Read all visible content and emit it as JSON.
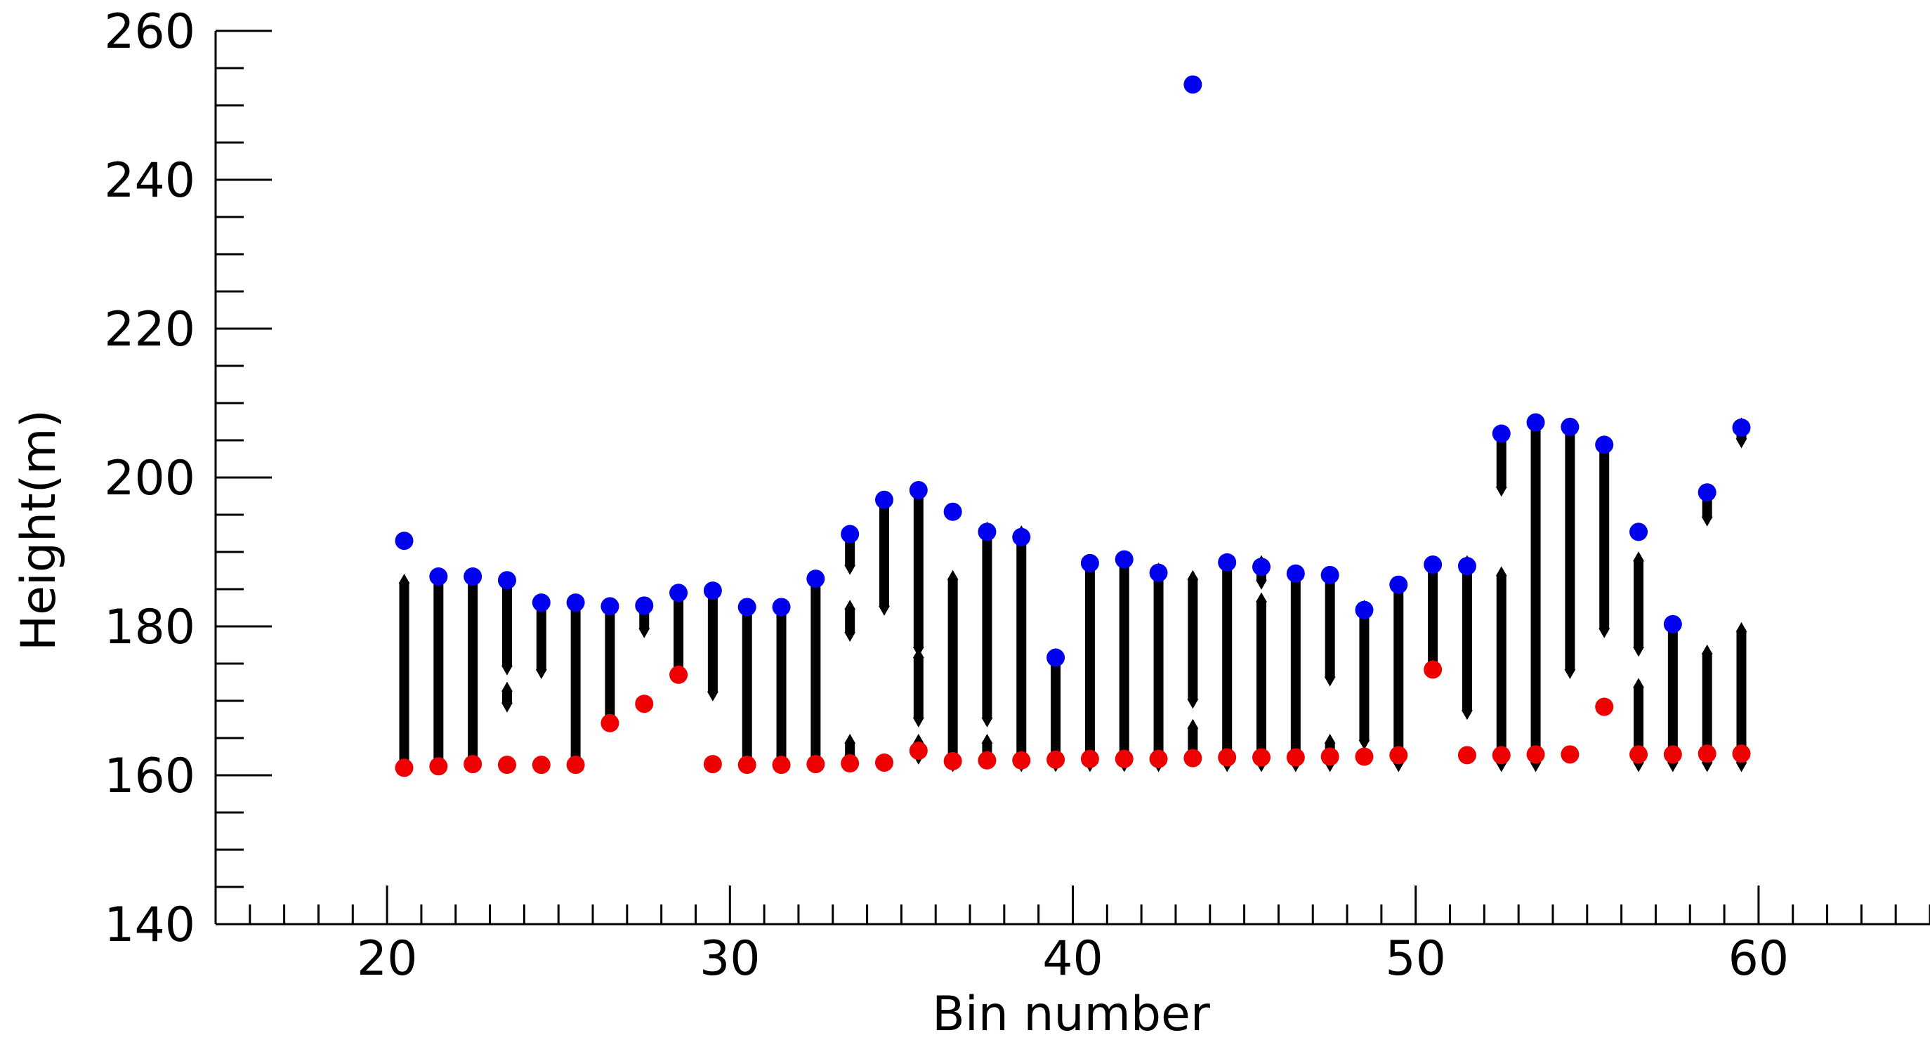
{
  "chart_data": {
    "type": "scatter",
    "title": "",
    "xlabel": "Bin number",
    "ylabel": "Height(m)",
    "xlim": [
      15,
      65
    ],
    "ylim": [
      140,
      260
    ],
    "xticks": [
      "20",
      "30",
      "40",
      "50",
      "60"
    ],
    "yticks": [
      "140",
      "160",
      "180",
      "200",
      "220",
      "240",
      "260"
    ],
    "grid": false,
    "legend": "none",
    "colors": {
      "max": "#0000ee",
      "min": "#ee0000",
      "samples": "#000000"
    },
    "series": [
      {
        "key": "max",
        "marker": "filled-circle",
        "x": [
          20.5,
          21.5,
          22.5,
          23.5,
          24.5,
          25.5,
          26.5,
          27.5,
          28.5,
          29.5,
          30.5,
          31.5,
          32.5,
          33.5,
          34.5,
          35.5,
          36.5,
          37.5,
          38.5,
          39.5,
          40.5,
          41.5,
          42.5,
          43.5,
          44.5,
          45.5,
          46.5,
          47.5,
          48.5,
          49.5,
          50.5,
          51.5,
          52.5,
          53.5,
          54.5,
          55.5,
          56.5,
          57.5,
          58.5,
          59.5
        ],
        "y": [
          191.5,
          186.7,
          186.7,
          186.2,
          183.2,
          183.2,
          182.7,
          182.8,
          184.5,
          184.8,
          182.6,
          182.6,
          186.4,
          192.4,
          197.0,
          198.3,
          195.4,
          192.7,
          192.0,
          175.8,
          188.5,
          189.0,
          187.2,
          252.8,
          188.6,
          188.0,
          187.1,
          186.9,
          182.2,
          185.6,
          188.3,
          188.1,
          205.9,
          207.4,
          206.8,
          204.4,
          192.7,
          180.3,
          198.0,
          206.7
        ]
      },
      {
        "key": "min",
        "marker": "filled-circle",
        "x": [
          20.5,
          21.5,
          22.5,
          23.5,
          24.5,
          25.5,
          26.5,
          27.5,
          28.5,
          29.5,
          30.5,
          31.5,
          32.5,
          33.5,
          34.5,
          35.5,
          36.5,
          37.5,
          38.5,
          39.5,
          40.5,
          41.5,
          42.5,
          43.5,
          44.5,
          45.5,
          46.5,
          47.5,
          48.5,
          49.5,
          50.5,
          51.5,
          52.5,
          53.5,
          54.5,
          55.5,
          56.5,
          57.5,
          58.5,
          59.5
        ],
        "y": [
          161.0,
          161.2,
          161.5,
          161.4,
          161.4,
          161.4,
          167.0,
          169.6,
          173.5,
          161.5,
          161.4,
          161.4,
          161.5,
          161.6,
          161.7,
          163.3,
          161.9,
          162.0,
          162.0,
          162.1,
          162.2,
          162.2,
          162.2,
          162.3,
          162.4,
          162.4,
          162.4,
          162.5,
          162.5,
          162.7,
          174.2,
          162.7,
          162.7,
          162.8,
          162.8,
          169.2,
          162.8,
          162.8,
          162.9,
          162.9
        ]
      },
      {
        "key": "samples",
        "marker": "open-diamond",
        "columns": [
          {
            "x": 20.5,
            "ranges": [
              [
                162.5,
                185.0
              ]
            ]
          },
          {
            "x": 21.5,
            "ranges": [
              [
                162.5,
                185.5
              ]
            ]
          },
          {
            "x": 22.5,
            "ranges": [
              [
                162.5,
                185.5
              ]
            ]
          },
          {
            "x": 23.5,
            "ranges": [
              [
                170.5,
                170.5
              ],
              [
                175.5,
                185.0
              ]
            ]
          },
          {
            "x": 24.5,
            "ranges": [
              [
                175.0,
                182.0
              ]
            ]
          },
          {
            "x": 25.5,
            "ranges": [
              [
                162.5,
                182.0
              ]
            ]
          },
          {
            "x": 26.5,
            "ranges": [
              [
                168.5,
                181.5
              ]
            ]
          },
          {
            "x": 27.5,
            "ranges": [
              [
                180.5,
                181.5
              ]
            ]
          },
          {
            "x": 28.5,
            "ranges": [
              [
                175.0,
                183.0
              ]
            ]
          },
          {
            "x": 29.5,
            "ranges": [
              [
                172.0,
                183.5
              ]
            ]
          },
          {
            "x": 30.5,
            "ranges": [
              [
                162.5,
                181.5
              ]
            ]
          },
          {
            "x": 31.5,
            "ranges": [
              [
                162.5,
                181.5
              ]
            ]
          },
          {
            "x": 32.5,
            "ranges": [
              [
                162.5,
                185.0
              ]
            ]
          },
          {
            "x": 33.5,
            "ranges": [
              [
                163.5,
                163.5
              ],
              [
                180.0,
                181.5
              ],
              [
                189.0,
                191.5
              ]
            ]
          },
          {
            "x": 34.5,
            "ranges": [
              [
                183.5,
                195.5
              ]
            ]
          },
          {
            "x": 35.5,
            "ranges": [
              [
                163.5,
                163.5
              ],
              [
                168.5,
                175.0
              ],
              [
                178.0,
                197.5
              ]
            ]
          },
          {
            "x": 36.5,
            "ranges": [
              [
                162.5,
                185.5
              ]
            ]
          },
          {
            "x": 37.5,
            "ranges": [
              [
                163.5,
                163.5
              ],
              [
                168.5,
                192.0
              ]
            ]
          },
          {
            "x": 38.5,
            "ranges": [
              [
                162.5,
                191.5
              ]
            ]
          },
          {
            "x": 39.5,
            "ranges": [
              [
                162.5,
                175.0
              ]
            ]
          },
          {
            "x": 40.5,
            "ranges": [
              [
                162.5,
                187.5
              ]
            ]
          },
          {
            "x": 41.5,
            "ranges": [
              [
                162.5,
                188.0
              ]
            ]
          },
          {
            "x": 42.5,
            "ranges": [
              [
                162.5,
                186.5
              ]
            ]
          },
          {
            "x": 43.5,
            "ranges": [
              [
                164.0,
                165.5
              ],
              [
                171.0,
                185.5
              ]
            ]
          },
          {
            "x": 44.5,
            "ranges": [
              [
                162.5,
                187.5
              ]
            ]
          },
          {
            "x": 45.5,
            "ranges": [
              [
                162.5,
                182.5
              ],
              [
                187.0,
                187.5
              ]
            ]
          },
          {
            "x": 46.5,
            "ranges": [
              [
                162.5,
                186.0
              ]
            ]
          },
          {
            "x": 47.5,
            "ranges": [
              [
                162.5,
                163.5
              ],
              [
                174.0,
                186.0
              ]
            ]
          },
          {
            "x": 48.5,
            "ranges": [
              [
                165.5,
                181.5
              ]
            ]
          },
          {
            "x": 49.5,
            "ranges": [
              [
                162.5,
                184.5
              ]
            ]
          },
          {
            "x": 50.5,
            "ranges": [
              [
                175.5,
                187.5
              ]
            ]
          },
          {
            "x": 51.5,
            "ranges": [
              [
                169.5,
                187.5
              ]
            ]
          },
          {
            "x": 52.5,
            "ranges": [
              [
                162.5,
                186.0
              ],
              [
                199.5,
                205.0
              ]
            ]
          },
          {
            "x": 53.5,
            "ranges": [
              [
                162.5,
                206.5
              ]
            ]
          },
          {
            "x": 54.5,
            "ranges": [
              [
                175.0,
                206.0
              ]
            ]
          },
          {
            "x": 55.5,
            "ranges": [
              [
                180.5,
                203.5
              ]
            ]
          },
          {
            "x": 56.5,
            "ranges": [
              [
                162.5,
                171.0
              ],
              [
                178.0,
                188.0
              ]
            ]
          },
          {
            "x": 57.5,
            "ranges": [
              [
                162.5,
                179.5
              ]
            ]
          },
          {
            "x": 58.5,
            "ranges": [
              [
                162.5,
                175.5
              ],
              [
                195.5,
                197.0
              ]
            ]
          },
          {
            "x": 59.5,
            "ranges": [
              [
                162.5,
                178.5
              ],
              [
                206.0,
                206.0
              ]
            ]
          }
        ]
      }
    ]
  }
}
